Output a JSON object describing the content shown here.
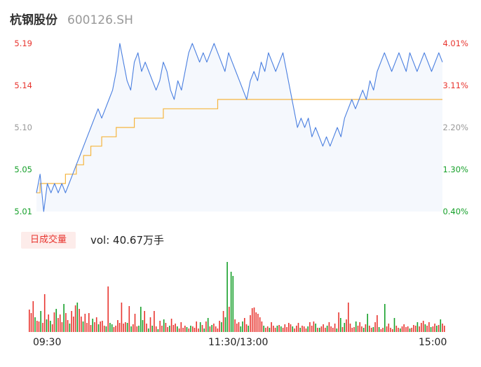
{
  "header": {
    "name": "杭钢股份",
    "code": "600126.SH"
  },
  "colors": {
    "up": "#e8352f",
    "down": "#16a02a",
    "neutral": "#999999",
    "price_line": "#4a7fe0",
    "avg_line": "#f5b53f",
    "area": "#f5f8fd"
  },
  "volume_panel": {
    "badge": "日成交量",
    "text": "vol: 40.67万手"
  },
  "chart_data": [
    {
      "type": "line",
      "title": "",
      "ylim": [
        5.01,
        5.19
      ],
      "y_ticks_left": [
        "5.19",
        "5.14",
        "5.10",
        "5.05",
        "5.01"
      ],
      "y_ticks_right": [
        "4.01%",
        "3.11%",
        "2.20%",
        "1.30%",
        "0.40%"
      ],
      "x_ticks": [
        "09:30",
        "11:30/13:00",
        "15:00"
      ],
      "series": [
        {
          "color": "#4a7fe0",
          "values": [
            5.03,
            5.05,
            5.01,
            5.04,
            5.03,
            5.04,
            5.03,
            5.04,
            5.03,
            5.04,
            5.05,
            5.06,
            5.07,
            5.08,
            5.09,
            5.1,
            5.11,
            5.12,
            5.11,
            5.12,
            5.13,
            5.14,
            5.16,
            5.19,
            5.17,
            5.15,
            5.14,
            5.17,
            5.18,
            5.16,
            5.17,
            5.16,
            5.15,
            5.14,
            5.15,
            5.17,
            5.16,
            5.14,
            5.13,
            5.15,
            5.14,
            5.16,
            5.18,
            5.19,
            5.18,
            5.17,
            5.18,
            5.17,
            5.18,
            5.19,
            5.18,
            5.17,
            5.16,
            5.18,
            5.17,
            5.16,
            5.15,
            5.14,
            5.13,
            5.15,
            5.16,
            5.15,
            5.17,
            5.16,
            5.18,
            5.17,
            5.16,
            5.17,
            5.18,
            5.16,
            5.14,
            5.12,
            5.1,
            5.11,
            5.1,
            5.11,
            5.09,
            5.1,
            5.09,
            5.08,
            5.09,
            5.08,
            5.09,
            5.1,
            5.09,
            5.11,
            5.12,
            5.13,
            5.12,
            5.13,
            5.14,
            5.13,
            5.15,
            5.14,
            5.16,
            5.17,
            5.18,
            5.17,
            5.16,
            5.17,
            5.18,
            5.17,
            5.16,
            5.18,
            5.17,
            5.16,
            5.17,
            5.18,
            5.17,
            5.16,
            5.17,
            5.18,
            5.17
          ]
        },
        {
          "color": "#f5b53f",
          "values": [
            5.03,
            5.04,
            5.04,
            5.04,
            5.04,
            5.04,
            5.04,
            5.04,
            5.05,
            5.05,
            5.05,
            5.06,
            5.06,
            5.07,
            5.07,
            5.08,
            5.08,
            5.08,
            5.09,
            5.09,
            5.09,
            5.09,
            5.1,
            5.1,
            5.1,
            5.1,
            5.1,
            5.11,
            5.11,
            5.11,
            5.11,
            5.11,
            5.11,
            5.11,
            5.11,
            5.12,
            5.12,
            5.12,
            5.12,
            5.12,
            5.12,
            5.12,
            5.12,
            5.12,
            5.12,
            5.12,
            5.12,
            5.12,
            5.12,
            5.12,
            5.13,
            5.13,
            5.13,
            5.13,
            5.13,
            5.13,
            5.13,
            5.13,
            5.13,
            5.13,
            5.13,
            5.13,
            5.13,
            5.13,
            5.13,
            5.13,
            5.13,
            5.13,
            5.13,
            5.13,
            5.13,
            5.13,
            5.13,
            5.13,
            5.13,
            5.13,
            5.13,
            5.13,
            5.13,
            5.13,
            5.13,
            5.13,
            5.13,
            5.13,
            5.13,
            5.13,
            5.13,
            5.13,
            5.13,
            5.13,
            5.13,
            5.13,
            5.13,
            5.13,
            5.13,
            5.13,
            5.13,
            5.13,
            5.13,
            5.13,
            5.13,
            5.13,
            5.13,
            5.13,
            5.13,
            5.13,
            5.13,
            5.13,
            5.13,
            5.13,
            5.13,
            5.13,
            5.13
          ]
        }
      ]
    },
    {
      "type": "bar",
      "title": "",
      "up_color": "#e8352f",
      "down_color": "#16a02a",
      "bars": [
        [
          32,
          "up"
        ],
        [
          27,
          "up"
        ],
        [
          44,
          "up"
        ],
        [
          21,
          "down"
        ],
        [
          16,
          "up"
        ],
        [
          15,
          "up"
        ],
        [
          30,
          "down"
        ],
        [
          13,
          "up"
        ],
        [
          54,
          "up"
        ],
        [
          18,
          "down"
        ],
        [
          25,
          "up"
        ],
        [
          16,
          "down"
        ],
        [
          11,
          "up"
        ],
        [
          28,
          "up"
        ],
        [
          33,
          "down"
        ],
        [
          20,
          "up"
        ],
        [
          25,
          "up"
        ],
        [
          14,
          "up"
        ],
        [
          40,
          "down"
        ],
        [
          27,
          "up"
        ],
        [
          17,
          "up"
        ],
        [
          12,
          "down"
        ],
        [
          30,
          "up"
        ],
        [
          22,
          "up"
        ],
        [
          38,
          "up"
        ],
        [
          42,
          "down"
        ],
        [
          33,
          "up"
        ],
        [
          22,
          "up"
        ],
        [
          15,
          "down"
        ],
        [
          26,
          "up"
        ],
        [
          13,
          "up"
        ],
        [
          27,
          "up"
        ],
        [
          10,
          "up"
        ],
        [
          19,
          "down"
        ],
        [
          14,
          "up"
        ],
        [
          21,
          "up"
        ],
        [
          11,
          "down"
        ],
        [
          15,
          "up"
        ],
        [
          16,
          "up"
        ],
        [
          9,
          "up"
        ],
        [
          8,
          "down"
        ],
        [
          65,
          "up"
        ],
        [
          13,
          "down"
        ],
        [
          11,
          "down"
        ],
        [
          7,
          "up"
        ],
        [
          9,
          "up"
        ],
        [
          17,
          "up"
        ],
        [
          13,
          "up"
        ],
        [
          42,
          "up"
        ],
        [
          12,
          "up"
        ],
        [
          14,
          "up"
        ],
        [
          13,
          "down"
        ],
        [
          37,
          "up"
        ],
        [
          8,
          "down"
        ],
        [
          11,
          "up"
        ],
        [
          26,
          "up"
        ],
        [
          8,
          "up"
        ],
        [
          9,
          "down"
        ],
        [
          36,
          "down"
        ],
        [
          17,
          "down"
        ],
        [
          30,
          "up"
        ],
        [
          12,
          "up"
        ],
        [
          5,
          "down"
        ],
        [
          21,
          "up"
        ],
        [
          9,
          "down"
        ],
        [
          30,
          "up"
        ],
        [
          8,
          "up"
        ],
        [
          4,
          "down"
        ],
        [
          16,
          "up"
        ],
        [
          9,
          "up"
        ],
        [
          18,
          "down"
        ],
        [
          13,
          "up"
        ],
        [
          7,
          "up"
        ],
        [
          9,
          "down"
        ],
        [
          19,
          "up"
        ],
        [
          10,
          "up"
        ],
        [
          12,
          "up"
        ],
        [
          8,
          "down"
        ],
        [
          5,
          "up"
        ],
        [
          14,
          "up"
        ],
        [
          6,
          "up"
        ],
        [
          9,
          "up"
        ],
        [
          7,
          "down"
        ],
        [
          5,
          "up"
        ],
        [
          9,
          "down"
        ],
        [
          8,
          "up"
        ],
        [
          6,
          "up"
        ],
        [
          15,
          "up"
        ],
        [
          5,
          "up"
        ],
        [
          14,
          "down"
        ],
        [
          10,
          "up"
        ],
        [
          5,
          "down"
        ],
        [
          15,
          "up"
        ],
        [
          20,
          "down"
        ],
        [
          8,
          "up"
        ],
        [
          10,
          "down"
        ],
        [
          12,
          "up"
        ],
        [
          8,
          "up"
        ],
        [
          5,
          "up"
        ],
        [
          16,
          "up"
        ],
        [
          14,
          "down"
        ],
        [
          30,
          "up"
        ],
        [
          21,
          "down"
        ],
        [
          100,
          "down"
        ],
        [
          36,
          "up"
        ],
        [
          86,
          "down"
        ],
        [
          80,
          "down"
        ],
        [
          18,
          "up"
        ],
        [
          12,
          "up"
        ],
        [
          14,
          "up"
        ],
        [
          8,
          "down"
        ],
        [
          15,
          "down"
        ],
        [
          20,
          "up"
        ],
        [
          11,
          "up"
        ],
        [
          9,
          "down"
        ],
        [
          24,
          "up"
        ],
        [
          34,
          "up"
        ],
        [
          35,
          "up"
        ],
        [
          28,
          "up"
        ],
        [
          26,
          "up"
        ],
        [
          21,
          "up"
        ],
        [
          15,
          "up"
        ],
        [
          9,
          "down"
        ],
        [
          6,
          "up"
        ],
        [
          8,
          "up"
        ],
        [
          6,
          "down"
        ],
        [
          14,
          "up"
        ],
        [
          9,
          "up"
        ],
        [
          6,
          "up"
        ],
        [
          9,
          "down"
        ],
        [
          10,
          "up"
        ],
        [
          8,
          "down"
        ],
        [
          6,
          "up"
        ],
        [
          11,
          "up"
        ],
        [
          7,
          "up"
        ],
        [
          13,
          "up"
        ],
        [
          11,
          "up"
        ],
        [
          8,
          "down"
        ],
        [
          5,
          "up"
        ],
        [
          9,
          "up"
        ],
        [
          13,
          "up"
        ],
        [
          6,
          "down"
        ],
        [
          9,
          "up"
        ],
        [
          8,
          "up"
        ],
        [
          5,
          "up"
        ],
        [
          8,
          "down"
        ],
        [
          14,
          "up"
        ],
        [
          9,
          "up"
        ],
        [
          15,
          "up"
        ],
        [
          12,
          "down"
        ],
        [
          6,
          "up"
        ],
        [
          6,
          "down"
        ],
        [
          8,
          "up"
        ],
        [
          11,
          "up"
        ],
        [
          6,
          "up"
        ],
        [
          9,
          "down"
        ],
        [
          14,
          "up"
        ],
        [
          8,
          "up"
        ],
        [
          6,
          "up"
        ],
        [
          12,
          "up"
        ],
        [
          5,
          "down"
        ],
        [
          28,
          "up"
        ],
        [
          20,
          "down"
        ],
        [
          7,
          "up"
        ],
        [
          13,
          "down"
        ],
        [
          18,
          "up"
        ],
        [
          42,
          "up"
        ],
        [
          12,
          "up"
        ],
        [
          6,
          "up"
        ],
        [
          7,
          "up"
        ],
        [
          15,
          "down"
        ],
        [
          9,
          "up"
        ],
        [
          14,
          "up"
        ],
        [
          8,
          "up"
        ],
        [
          6,
          "down"
        ],
        [
          11,
          "up"
        ],
        [
          26,
          "down"
        ],
        [
          9,
          "up"
        ],
        [
          6,
          "up"
        ],
        [
          7,
          "down"
        ],
        [
          14,
          "up"
        ],
        [
          24,
          "up"
        ],
        [
          7,
          "down"
        ],
        [
          4,
          "up"
        ],
        [
          6,
          "up"
        ],
        [
          40,
          "down"
        ],
        [
          8,
          "up"
        ],
        [
          12,
          "up"
        ],
        [
          6,
          "up"
        ],
        [
          4,
          "up"
        ],
        [
          20,
          "down"
        ],
        [
          9,
          "up"
        ],
        [
          6,
          "up"
        ],
        [
          5,
          "down"
        ],
        [
          8,
          "up"
        ],
        [
          11,
          "up"
        ],
        [
          7,
          "up"
        ],
        [
          8,
          "up"
        ],
        [
          5,
          "down"
        ],
        [
          6,
          "up"
        ],
        [
          10,
          "up"
        ],
        [
          9,
          "up"
        ],
        [
          14,
          "down"
        ],
        [
          8,
          "up"
        ],
        [
          13,
          "up"
        ],
        [
          16,
          "up"
        ],
        [
          11,
          "down"
        ],
        [
          9,
          "up"
        ],
        [
          14,
          "up"
        ],
        [
          7,
          "down"
        ],
        [
          8,
          "up"
        ],
        [
          12,
          "up"
        ],
        [
          9,
          "down"
        ],
        [
          10,
          "up"
        ],
        [
          18,
          "down"
        ],
        [
          12,
          "up"
        ],
        [
          9,
          "up"
        ]
      ]
    }
  ]
}
